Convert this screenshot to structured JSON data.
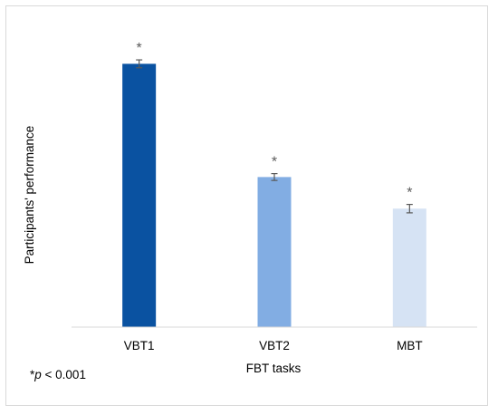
{
  "chart_data": {
    "type": "bar",
    "categories": [
      "VBT1",
      "VBT2",
      "MBT"
    ],
    "values": [
      100,
      57,
      45
    ],
    "error": [
      1.5,
      1.3,
      1.6
    ],
    "ylim": [
      0,
      106
    ],
    "colors": [
      "#0a52a1",
      "#82ade3",
      "#d6e3f4"
    ],
    "error_color": "#595959",
    "significance_marks": [
      "*",
      "*",
      "*"
    ],
    "xlabel": "FBT tasks",
    "ylabel": "Participants' performance",
    "footnote": {
      "star": "*",
      "p_italic": "p",
      "rest": " < 0.001"
    },
    "grid": false,
    "legend": "none"
  }
}
